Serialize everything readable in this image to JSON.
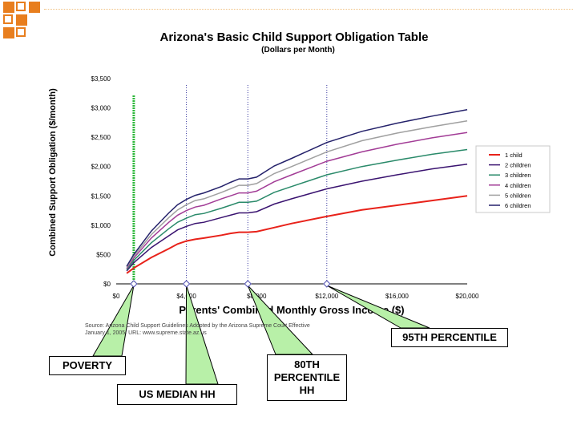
{
  "chart_data": {
    "type": "line",
    "title": "Arizona's Basic Child Support Obligation Table",
    "subtitle": "(Dollars per Month)",
    "xlabel": "Parents' Combined Monthly Gross Income ($)",
    "ylabel": "Combined Support Obligation ($/month)",
    "xlim": [
      0,
      20000
    ],
    "ylim": [
      0,
      3500
    ],
    "x_ticks": [
      "$0",
      "$4,000",
      "$8,000",
      "$12,000",
      "$16,000",
      "$20,000"
    ],
    "y_ticks": [
      "$0",
      "$500",
      "$1,000",
      "$1,500",
      "$2,000",
      "$2,500",
      "$3,000",
      "$3,500"
    ],
    "x_tick_values": [
      0,
      4000,
      8000,
      12000,
      16000,
      20000
    ],
    "y_tick_values": [
      0,
      500,
      1000,
      1500,
      2000,
      2500,
      3000,
      3500
    ],
    "grid": false,
    "legend_position": "right",
    "x": [
      600,
      1000,
      2000,
      3000,
      3500,
      4000,
      4500,
      5000,
      6000,
      6500,
      7000,
      7500,
      8000,
      9000,
      10000,
      12000,
      14000,
      16000,
      18000,
      20000
    ],
    "series": [
      {
        "name": "1 child",
        "color": "#e8221a",
        "values": [
          180,
          270,
          450,
          600,
          680,
          730,
          760,
          780,
          830,
          860,
          880,
          880,
          890,
          960,
          1030,
          1150,
          1260,
          1340,
          1420,
          1500
        ]
      },
      {
        "name": "2 children",
        "color": "#3a1370",
        "values": [
          220,
          360,
          620,
          820,
          920,
          980,
          1030,
          1050,
          1130,
          1170,
          1210,
          1210,
          1230,
          1360,
          1450,
          1620,
          1750,
          1860,
          1960,
          2040
        ]
      },
      {
        "name": "3 children",
        "color": "#2a8a6a",
        "values": [
          240,
          400,
          700,
          940,
          1050,
          1120,
          1180,
          1200,
          1290,
          1340,
          1390,
          1390,
          1410,
          1560,
          1660,
          1860,
          2000,
          2110,
          2210,
          2290
        ]
      },
      {
        "name": "4 children",
        "color": "#a23c96",
        "values": [
          260,
          440,
          780,
          1050,
          1170,
          1250,
          1310,
          1340,
          1450,
          1500,
          1550,
          1550,
          1580,
          1740,
          1860,
          2090,
          2250,
          2380,
          2490,
          2580
        ]
      },
      {
        "name": "5 children",
        "color": "#a0a0a0",
        "values": [
          280,
          470,
          840,
          1130,
          1260,
          1350,
          1420,
          1450,
          1560,
          1620,
          1680,
          1680,
          1710,
          1880,
          2000,
          2250,
          2440,
          2570,
          2680,
          2780
        ]
      },
      {
        "name": "6 children",
        "color": "#24216a",
        "values": [
          300,
          500,
          900,
          1210,
          1350,
          1440,
          1510,
          1550,
          1660,
          1730,
          1790,
          1790,
          1820,
          2010,
          2140,
          2410,
          2600,
          2740,
          2860,
          2970
        ]
      }
    ],
    "markers": [
      {
        "label": "POVERTY",
        "x": 1000,
        "color": "#2db83a",
        "style": "dotted-thick"
      },
      {
        "label": "US MEDIAN HH",
        "x": 4000,
        "color": "#3a3aa0",
        "style": "dotted"
      },
      {
        "label": "80TH PERCENTILE HH",
        "x": 7500,
        "color": "#3a3aa0",
        "style": "dotted"
      },
      {
        "label": "95TH PERCENTILE",
        "x": 12000,
        "color": "#3a3aa0",
        "style": "dotted"
      }
    ],
    "source_lines": [
      "Source: Arizona Child Support Guidelines Adopted by the Arizona Supreme Court Effective",
      "January 1, 2005. URL: www.supreme.state.az.us"
    ]
  },
  "callouts": {
    "poverty": "POVERTY",
    "median": "US MEDIAN HH",
    "p80_line1": "80TH",
    "p80_line2": "PERCENTILE",
    "p80_line3": "HH",
    "p95": "95TH PERCENTILE"
  },
  "colors": {
    "decoration": "#e87e1e",
    "callout_fill": "#b8f0a8",
    "axis": "#000000"
  }
}
